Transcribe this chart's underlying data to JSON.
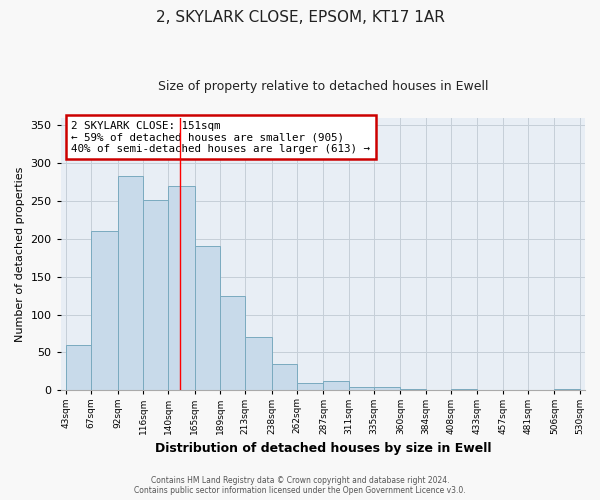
{
  "title1": "2, SKYLARK CLOSE, EPSOM, KT17 1AR",
  "title2": "Size of property relative to detached houses in Ewell",
  "xlabel": "Distribution of detached houses by size in Ewell",
  "ylabel": "Number of detached properties",
  "bin_labels": [
    "43sqm",
    "67sqm",
    "92sqm",
    "116sqm",
    "140sqm",
    "165sqm",
    "189sqm",
    "213sqm",
    "238sqm",
    "262sqm",
    "287sqm",
    "311sqm",
    "335sqm",
    "360sqm",
    "384sqm",
    "408sqm",
    "433sqm",
    "457sqm",
    "481sqm",
    "506sqm",
    "530sqm"
  ],
  "bin_edges": [
    43,
    67,
    92,
    116,
    140,
    165,
    189,
    213,
    238,
    262,
    287,
    311,
    335,
    360,
    384,
    408,
    433,
    457,
    481,
    506,
    530
  ],
  "bar_values": [
    60,
    210,
    283,
    251,
    270,
    190,
    125,
    70,
    35,
    10,
    13,
    5,
    4,
    2,
    1,
    2,
    0,
    1,
    0,
    2
  ],
  "bar_color": "#c8daea",
  "bar_edge_color": "#7aaabf",
  "ylim": [
    0,
    360
  ],
  "yticks": [
    0,
    50,
    100,
    150,
    200,
    250,
    300,
    350
  ],
  "red_line_x": 151,
  "annotation_line1": "2 SKYLARK CLOSE: 151sqm",
  "annotation_line2": "← 59% of detached houses are smaller (905)",
  "annotation_line3": "40% of semi-detached houses are larger (613) →",
  "annotation_box_color": "#ffffff",
  "annotation_box_edge_color": "#cc0000",
  "footer_line1": "Contains HM Land Registry data © Crown copyright and database right 2024.",
  "footer_line2": "Contains public sector information licensed under the Open Government Licence v3.0.",
  "bg_color": "#f8f8f8",
  "plot_bg_color": "#e8eef5",
  "grid_color": "#c5cfd8",
  "spine_color": "#aaaaaa"
}
